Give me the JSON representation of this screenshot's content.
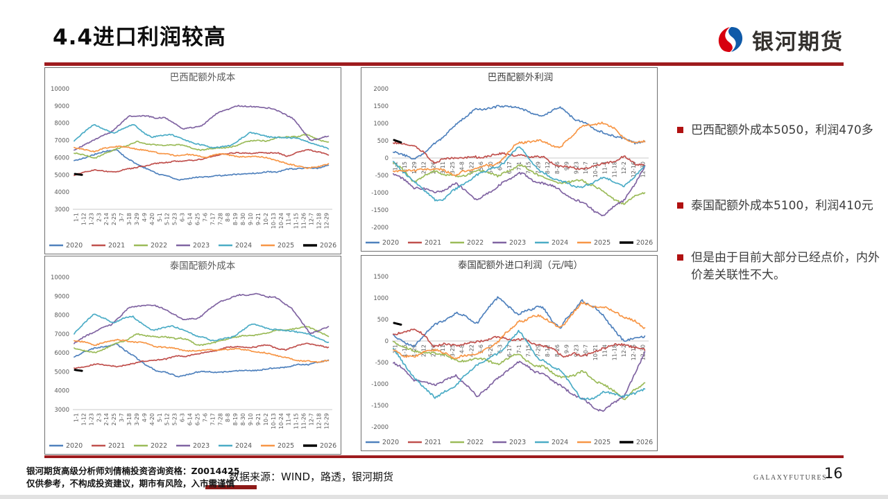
{
  "page": {
    "title": "4.4进口利润较高",
    "page_number": "16",
    "brand_text": "银河期货",
    "brand_footer_text": "GALAXYFUTURES",
    "accent_color": "#9e1b1e",
    "bullet_color": "#b01111"
  },
  "bullets": [
    {
      "text": "巴西配额外成本5050，利润470多"
    },
    {
      "text": "泰国配额外成本5100，利润410元"
    },
    {
      "text": "但是由于目前大部分已经点价，内外价差关联性不大。"
    }
  ],
  "footer": {
    "analyst_line": "银河期货高级分析师刘倩楠投资咨询资格：Z0014425",
    "disclaimer_line": "仅供参考，不构成投资建议，期市有风险，入市需谨慎",
    "source_line": "数据来源：WIND，路透，银河期货"
  },
  "series_colors": {
    "2020": "#4f81bd",
    "2021": "#c0504d",
    "2022": "#9bbb59",
    "2023": "#8064a2",
    "2024": "#4bacc6",
    "2025": "#f79646",
    "2026": "#000000"
  },
  "chart_data": [
    {
      "id": "A",
      "type": "line",
      "title": "巴西配额外成本",
      "title_serif": false,
      "xlabel": "",
      "ylabel": "",
      "ylim": [
        3000,
        10000
      ],
      "yticks": [
        10000,
        9000,
        8000,
        7000,
        6000,
        5000,
        4000,
        3000
      ],
      "grid": false,
      "zero_axis": false,
      "legend_position": "bottom",
      "x_labels": [
        "1-1",
        "1-12",
        "1-23",
        "2-3",
        "2-14",
        "2-25",
        "3-7",
        "3-18",
        "3-29",
        "4-9",
        "4-20",
        "5-1",
        "5-12",
        "5-23",
        "6-3",
        "6-14",
        "6-25",
        "7-6",
        "7-17",
        "7-28",
        "8-8",
        "8-19",
        "8-30",
        "9-10",
        "9-21",
        "10-2",
        "10-13",
        "10-24",
        "11-4",
        "11-15",
        "11-26",
        "12-7",
        "12-18",
        "12-29"
      ],
      "series": [
        {
          "name": "2020",
          "values": [
            5750,
            6200,
            6450,
            5600,
            5000,
            4750,
            4950,
            4900,
            5050,
            5100,
            5250,
            5350,
            5500
          ]
        },
        {
          "name": "2021",
          "values": [
            5050,
            5300,
            5200,
            5500,
            5650,
            5750,
            5900,
            6150,
            6300,
            6350,
            6150,
            6400,
            6200
          ]
        },
        {
          "name": "2022",
          "values": [
            6250,
            5950,
            6500,
            6900,
            6750,
            6700,
            6400,
            6550,
            6850,
            7000,
            7200,
            7350,
            6850
          ]
        },
        {
          "name": "2023",
          "values": [
            6400,
            7000,
            7400,
            8400,
            8450,
            8300,
            7650,
            7900,
            8700,
            9000,
            9000,
            8900,
            8300,
            7000,
            7300
          ]
        },
        {
          "name": "2024",
          "values": [
            7000,
            7950,
            7500,
            7900,
            7150,
            7300,
            6950,
            6600,
            6750,
            7450,
            7250,
            7150,
            6900,
            6550
          ]
        },
        {
          "name": "2025",
          "values": [
            6650,
            6350,
            6700,
            6500,
            6300,
            6150,
            6050,
            6200,
            6100,
            6000,
            5700,
            5450,
            5600
          ]
        },
        {
          "name": "2026",
          "values": [
            5050,
            5000
          ]
        }
      ]
    },
    {
      "id": "B",
      "type": "line",
      "title": "巴西配额外利润",
      "title_serif": true,
      "xlabel": "",
      "ylabel": "",
      "ylim": [
        -2000,
        2000
      ],
      "yticks": [
        2000,
        1500,
        1000,
        500,
        0,
        -500,
        -1000,
        -1500,
        -2000
      ],
      "grid": false,
      "zero_axis": true,
      "legend_position": "bottom",
      "x_labels": [
        "1-1",
        "1-15",
        "1-29",
        "2-12",
        "2-26",
        "3-11",
        "3-25",
        "4-8",
        "4-22",
        "5-6",
        "5-20",
        "6-3",
        "6-17",
        "7-1",
        "7-15",
        "7-29",
        "8-12",
        "8-26",
        "9-9",
        "9-23",
        "10-7",
        "10-21",
        "11-4",
        "11-18",
        "12-2",
        "12-16",
        "12-30"
      ],
      "series": [
        {
          "name": "2020",
          "values": [
            150,
            -50,
            400,
            950,
            1400,
            1550,
            1450,
            1200,
            1450,
            1000,
            750,
            550,
            430
          ]
        },
        {
          "name": "2021",
          "values": [
            450,
            350,
            -100,
            50,
            0,
            100,
            150,
            0,
            -250,
            -300,
            -100,
            0,
            -250
          ]
        },
        {
          "name": "2022",
          "values": [
            -100,
            -650,
            -400,
            -500,
            -350,
            -550,
            -150,
            -550,
            -800,
            -650,
            -950,
            -1300,
            -950
          ]
        },
        {
          "name": "2023",
          "values": [
            -400,
            -900,
            -1000,
            -700,
            -1250,
            -800,
            -450,
            -700,
            -950,
            -1300,
            -1600,
            -1200,
            -250
          ]
        },
        {
          "name": "2024",
          "values": [
            -100,
            -700,
            -1250,
            -950,
            -500,
            -250,
            300,
            -400,
            -700,
            -850,
            -600,
            -750,
            -300
          ]
        },
        {
          "name": "2025",
          "values": [
            -350,
            -400,
            -250,
            -450,
            -300,
            -100,
            450,
            500,
            300,
            950,
            1050,
            600,
            420
          ]
        },
        {
          "name": "2026",
          "values": [
            520,
            450
          ]
        }
      ]
    },
    {
      "id": "C",
      "type": "line",
      "title": "泰国配额外成本",
      "title_serif": false,
      "xlabel": "",
      "ylabel": "",
      "ylim": [
        3000,
        10000
      ],
      "yticks": [
        10000,
        9000,
        8000,
        7000,
        6000,
        5000,
        4000,
        3000
      ],
      "grid": false,
      "zero_axis": false,
      "legend_position": "bottom",
      "x_labels": [
        "1-1",
        "1-12",
        "1-23",
        "2-3",
        "2-14",
        "2-25",
        "3-7",
        "3-18",
        "3-29",
        "4-9",
        "4-20",
        "5-1",
        "5-12",
        "5-23",
        "6-3",
        "6-14",
        "6-25",
        "7-6",
        "7-17",
        "7-28",
        "8-8",
        "8-19",
        "8-30",
        "9-10",
        "9-21",
        "10-2",
        "10-13",
        "10-24",
        "11-4",
        "11-15",
        "11-26",
        "12-7",
        "12-18",
        "12-29"
      ],
      "series": [
        {
          "name": "2020",
          "values": [
            5800,
            6250,
            6500,
            5650,
            5050,
            4800,
            5000,
            4950,
            5100,
            5150,
            5300,
            5400,
            5550
          ]
        },
        {
          "name": "2021",
          "values": [
            5100,
            5350,
            5250,
            5550,
            5700,
            5800,
            5950,
            6200,
            6350,
            6400,
            6200,
            6450,
            6250
          ]
        },
        {
          "name": "2022",
          "values": [
            6300,
            6000,
            6550,
            6950,
            6800,
            6750,
            6450,
            6600,
            6900,
            7050,
            7250,
            7400,
            6900
          ]
        },
        {
          "name": "2023",
          "values": [
            6450,
            7050,
            7450,
            8450,
            8500,
            8350,
            7700,
            7950,
            8750,
            9050,
            9050,
            8950,
            8350,
            7050,
            7350
          ]
        },
        {
          "name": "2024",
          "values": [
            7050,
            8000,
            7550,
            7950,
            7200,
            7350,
            7000,
            6650,
            6800,
            7500,
            7300,
            7200,
            6950,
            6600
          ]
        },
        {
          "name": "2025",
          "values": [
            6700,
            6400,
            6750,
            6550,
            6350,
            6200,
            6100,
            6250,
            6150,
            6050,
            5750,
            5500,
            5650
          ]
        },
        {
          "name": "2026",
          "values": [
            5100,
            5050
          ]
        }
      ]
    },
    {
      "id": "D",
      "type": "line",
      "title": "泰国配额外进口利润（元/吨）",
      "title_serif": true,
      "xlabel": "",
      "ylabel": "",
      "ylim": [
        -2000,
        1500
      ],
      "yticks": [
        1500,
        1000,
        500,
        0,
        -500,
        -1000,
        -1500,
        -2000
      ],
      "grid": false,
      "zero_axis": true,
      "legend_position": "bottom",
      "x_labels": [
        "1-1",
        "1-15",
        "1-29",
        "2-12",
        "2-26",
        "3-11",
        "3-25",
        "4-8",
        "4-22",
        "5-6",
        "5-20",
        "6-3",
        "6-17",
        "7-1",
        "7-15",
        "7-29",
        "8-12",
        "8-26",
        "9-9",
        "9-23",
        "10-7",
        "10-21",
        "11-4",
        "11-18",
        "12-2",
        "12-16",
        "12-30"
      ],
      "series": [
        {
          "name": "2020",
          "values": [
            150,
            -100,
            350,
            700,
            450,
            1000,
            650,
            800,
            300,
            1000,
            600,
            0,
            150
          ]
        },
        {
          "name": "2021",
          "values": [
            200,
            300,
            -100,
            -150,
            0,
            100,
            50,
            -100,
            -300,
            -350,
            -150,
            -100,
            -250
          ]
        },
        {
          "name": "2022",
          "values": [
            0,
            -250,
            -300,
            -450,
            -400,
            -600,
            -300,
            -600,
            -850,
            -750,
            -1000,
            -1300,
            -1000
          ]
        },
        {
          "name": "2023",
          "values": [
            -450,
            -950,
            -1050,
            -750,
            -1300,
            -850,
            -500,
            -750,
            -1000,
            -1350,
            -1650,
            -1250,
            -300
          ]
        },
        {
          "name": "2024",
          "values": [
            -200,
            -800,
            -1350,
            -1000,
            -550,
            -300,
            200,
            -450,
            -750,
            -1400,
            -1200,
            -1300,
            -1150
          ]
        },
        {
          "name": "2025",
          "values": [
            -250,
            -350,
            -200,
            -400,
            -250,
            -50,
            500,
            550,
            350,
            900,
            800,
            550,
            350
          ]
        },
        {
          "name": "2026",
          "values": [
            420,
            380
          ]
        }
      ]
    }
  ]
}
